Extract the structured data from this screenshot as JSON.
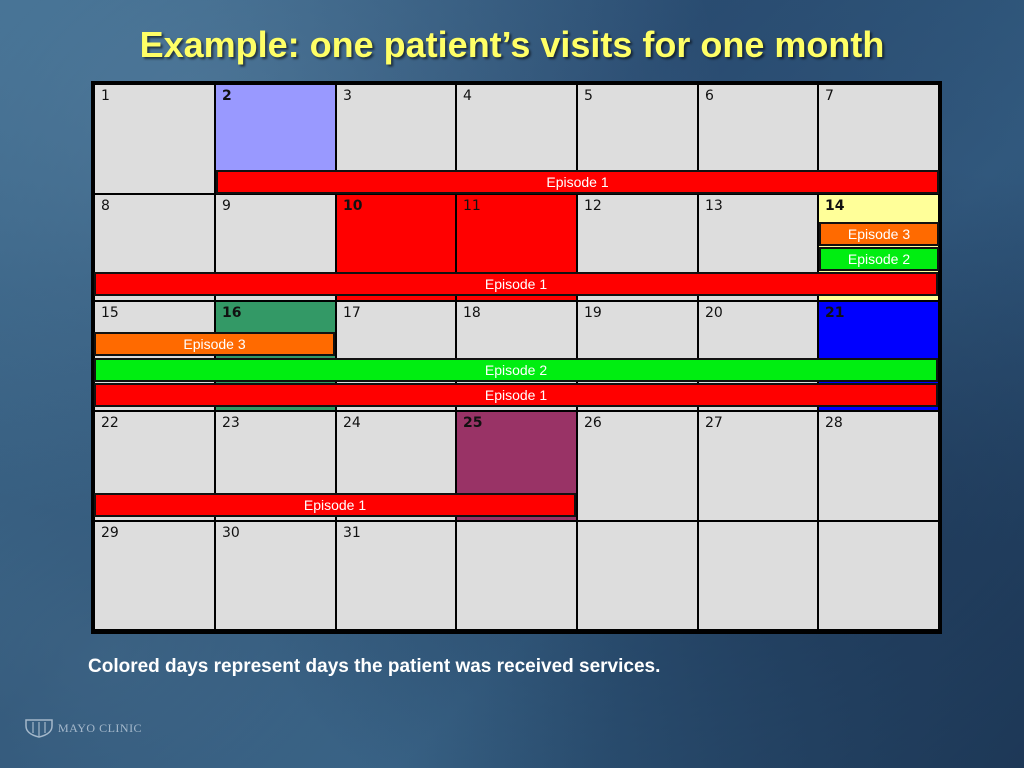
{
  "slide": {
    "title": "Example: one patient’s visits for one month",
    "footnote": "Colored days represent days the patient was received services.",
    "logo_text": "MAYO CLINIC"
  },
  "colors": {
    "episode_1": "#ff0000",
    "episode_2": "#00ee11",
    "episode_3": "#ff6a00",
    "day_default": "#dddddd"
  },
  "calendar": {
    "days": [
      {
        "label": "1",
        "bold": false,
        "color": null
      },
      {
        "label": "2",
        "bold": true,
        "color": "#9999ff"
      },
      {
        "label": "3",
        "bold": false,
        "color": null
      },
      {
        "label": "4",
        "bold": false,
        "color": null
      },
      {
        "label": "5",
        "bold": false,
        "color": null
      },
      {
        "label": "6",
        "bold": false,
        "color": null
      },
      {
        "label": "7",
        "bold": false,
        "color": null
      },
      {
        "label": "8",
        "bold": false,
        "color": null
      },
      {
        "label": "9",
        "bold": false,
        "color": null
      },
      {
        "label": "10",
        "bold": true,
        "color": "#ff0000"
      },
      {
        "label": "11",
        "bold": false,
        "color": "#ff0000"
      },
      {
        "label": "12",
        "bold": false,
        "color": null
      },
      {
        "label": "13",
        "bold": false,
        "color": null
      },
      {
        "label": "14",
        "bold": true,
        "color": "#ffff99"
      },
      {
        "label": "15",
        "bold": false,
        "color": null
      },
      {
        "label": "16",
        "bold": true,
        "color": "#339966"
      },
      {
        "label": "17",
        "bold": false,
        "color": null
      },
      {
        "label": "18",
        "bold": false,
        "color": null
      },
      {
        "label": "19",
        "bold": false,
        "color": null
      },
      {
        "label": "20",
        "bold": false,
        "color": null
      },
      {
        "label": "21",
        "bold": true,
        "color": "#0000ff"
      },
      {
        "label": "22",
        "bold": false,
        "color": null
      },
      {
        "label": "23",
        "bold": false,
        "color": null
      },
      {
        "label": "24",
        "bold": false,
        "color": null
      },
      {
        "label": "25",
        "bold": true,
        "color": "#993366"
      },
      {
        "label": "26",
        "bold": false,
        "color": null
      },
      {
        "label": "27",
        "bold": false,
        "color": null
      },
      {
        "label": "28",
        "bold": false,
        "color": null
      },
      {
        "label": "29",
        "bold": false,
        "color": null
      },
      {
        "label": "30",
        "bold": false,
        "color": null
      },
      {
        "label": "31",
        "bold": false,
        "color": null
      },
      {
        "label": "",
        "bold": false,
        "color": null
      },
      {
        "label": "",
        "bold": false,
        "color": null
      },
      {
        "label": "",
        "bold": false,
        "color": null
      },
      {
        "label": "",
        "bold": false,
        "color": null
      }
    ],
    "episodes": [
      {
        "label": "Episode 1",
        "episode": 1,
        "start_day": 2,
        "end_day": 7
      },
      {
        "label": "Episode 3",
        "episode": 3,
        "start_day": 14,
        "end_day": 14
      },
      {
        "label": "Episode 2",
        "episode": 2,
        "start_day": 14,
        "end_day": 14
      },
      {
        "label": "Episode 1",
        "episode": 1,
        "start_day": 8,
        "end_day": 14
      },
      {
        "label": "Episode 3",
        "episode": 3,
        "start_day": 15,
        "end_day": 16
      },
      {
        "label": "Episode 2",
        "episode": 2,
        "start_day": 15,
        "end_day": 21
      },
      {
        "label": "Episode 1",
        "episode": 1,
        "start_day": 15,
        "end_day": 21
      },
      {
        "label": "Episode 1",
        "episode": 1,
        "start_day": 22,
        "end_day": 25
      }
    ]
  }
}
